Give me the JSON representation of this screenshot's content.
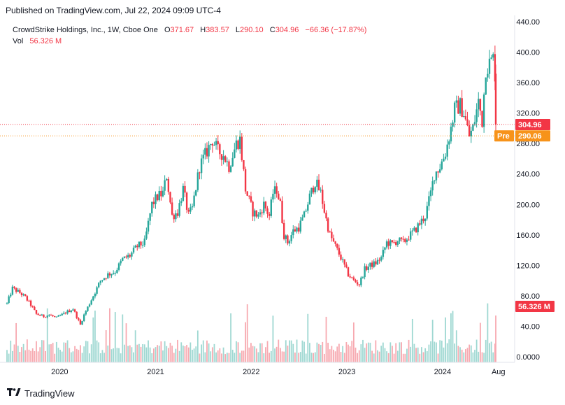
{
  "header": {
    "published": "Published on TradingView.com, Jul 22, 2024 09:09 UTC-4"
  },
  "legend": {
    "symbol": "CrowdStrike Holdings, Inc., 1W, Cboe One",
    "o_label": "O",
    "o_value": "371.67",
    "h_label": "H",
    "h_value": "383.57",
    "l_label": "L",
    "l_value": "290.10",
    "c_label": "C",
    "c_value": "304.96",
    "change": "−66.36 (−17.87%)",
    "vol_label": "Vol",
    "vol_value": "56.326 M"
  },
  "colors": {
    "up": "#26a69a",
    "down": "#f23645",
    "vol_up": "#9fd8d2",
    "vol_down": "#f7a9b0",
    "pre": "#f7931a",
    "grid": "#f0f3fa"
  },
  "footer": {
    "brand": "TradingView",
    "brand_icon": "tradingview-logo-icon"
  },
  "chart_data": {
    "type": "candlestick",
    "title": "CrowdStrike Holdings, Inc., 1W, Cboe One",
    "xlabel": "",
    "ylabel": "",
    "x_ticks": [
      "2020",
      "2021",
      "2022",
      "2023",
      "2024",
      "Aug"
    ],
    "y_ticks": [
      "0.0000",
      "40.00",
      "80.00",
      "120.00",
      "160.00",
      "200.00",
      "240.00",
      "280.00",
      "320.00",
      "360.00",
      "400.00",
      "440.00"
    ],
    "ylim": [
      0,
      440
    ],
    "grid": false,
    "price_tags": [
      {
        "label": "304.96",
        "value": 304.96,
        "type": "last"
      },
      {
        "label": "290.06",
        "value": 290.06,
        "type": "pre",
        "prefix": "Pre"
      },
      {
        "label": "56.326 M",
        "value": 56.326,
        "type": "volume"
      }
    ],
    "anchors": [
      [
        "2019-06-14",
        70
      ],
      [
        "2019-07-05",
        90
      ],
      [
        "2019-08-02",
        84
      ],
      [
        "2019-08-23",
        78
      ],
      [
        "2019-09-13",
        68
      ],
      [
        "2019-10-04",
        56
      ],
      [
        "2019-11-01",
        53
      ],
      [
        "2019-11-22",
        55
      ],
      [
        "2019-12-20",
        51
      ],
      [
        "2020-01-24",
        58
      ],
      [
        "2020-02-21",
        63
      ],
      [
        "2020-03-20",
        42
      ],
      [
        "2020-04-03",
        55
      ],
      [
        "2020-05-01",
        75
      ],
      [
        "2020-06-05",
        100
      ],
      [
        "2020-07-03",
        108
      ],
      [
        "2020-07-31",
        112
      ],
      [
        "2020-08-28",
        128
      ],
      [
        "2020-09-25",
        133
      ],
      [
        "2020-10-23",
        145
      ],
      [
        "2020-11-20",
        150
      ],
      [
        "2020-12-18",
        200
      ],
      [
        "2021-01-08",
        210
      ],
      [
        "2021-01-29",
        215
      ],
      [
        "2021-02-12",
        238
      ],
      [
        "2021-03-05",
        185
      ],
      [
        "2021-03-26",
        190
      ],
      [
        "2021-04-16",
        220
      ],
      [
        "2021-05-07",
        185
      ],
      [
        "2021-05-21",
        195
      ],
      [
        "2021-06-18",
        250
      ],
      [
        "2021-07-09",
        265
      ],
      [
        "2021-08-06",
        285
      ],
      [
        "2021-08-27",
        270
      ],
      [
        "2021-09-17",
        265
      ],
      [
        "2021-10-08",
        250
      ],
      [
        "2021-11-05",
        280
      ],
      [
        "2021-11-19",
        285
      ],
      [
        "2021-12-10",
        220
      ],
      [
        "2022-01-07",
        190
      ],
      [
        "2022-01-28",
        185
      ],
      [
        "2022-02-18",
        200
      ],
      [
        "2022-03-11",
        185
      ],
      [
        "2022-03-25",
        215
      ],
      [
        "2022-04-08",
        220
      ],
      [
        "2022-04-22",
        200
      ],
      [
        "2022-05-06",
        160
      ],
      [
        "2022-05-20",
        150
      ],
      [
        "2022-06-10",
        165
      ],
      [
        "2022-07-01",
        170
      ],
      [
        "2022-07-22",
        185
      ],
      [
        "2022-08-12",
        210
      ],
      [
        "2022-09-02",
        230
      ],
      [
        "2022-09-23",
        215
      ],
      [
        "2022-10-14",
        180
      ],
      [
        "2022-10-28",
        160
      ],
      [
        "2022-11-25",
        140
      ],
      [
        "2022-12-09",
        130
      ],
      [
        "2023-01-06",
        108
      ],
      [
        "2023-01-27",
        100
      ],
      [
        "2023-02-17",
        95
      ],
      [
        "2023-03-10",
        115
      ],
      [
        "2023-03-31",
        120
      ],
      [
        "2023-04-21",
        123
      ],
      [
        "2023-05-12",
        130
      ],
      [
        "2023-06-02",
        150
      ],
      [
        "2023-06-23",
        148
      ],
      [
        "2023-07-14",
        153
      ],
      [
        "2023-08-04",
        150
      ],
      [
        "2023-08-25",
        158
      ],
      [
        "2023-09-15",
        165
      ],
      [
        "2023-10-06",
        175
      ],
      [
        "2023-10-27",
        185
      ],
      [
        "2023-11-17",
        215
      ],
      [
        "2023-12-01",
        240
      ],
      [
        "2023-12-22",
        250
      ],
      [
        "2024-01-12",
        268
      ],
      [
        "2024-02-02",
        300
      ],
      [
        "2024-02-16",
        325
      ],
      [
        "2024-03-08",
        330
      ],
      [
        "2024-03-22",
        320
      ],
      [
        "2024-04-12",
        290
      ],
      [
        "2024-04-26",
        300
      ],
      [
        "2024-05-17",
        335
      ],
      [
        "2024-05-31",
        310
      ],
      [
        "2024-06-14",
        380
      ],
      [
        "2024-06-28",
        385
      ],
      [
        "2024-07-12",
        391
      ],
      [
        "2024-07-19",
        371.67
      ]
    ],
    "final_candle": {
      "date": "2024-07-22",
      "open": 371.67,
      "high": 383.57,
      "low": 290.1,
      "close": 304.96
    },
    "volume_ylim": [
      0,
      80
    ]
  }
}
